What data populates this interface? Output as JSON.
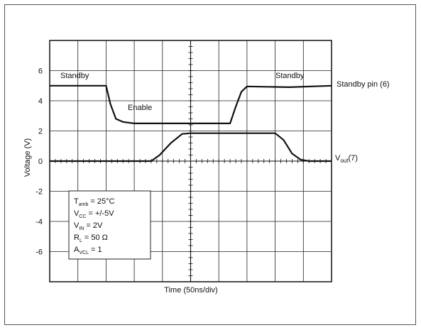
{
  "chart_data": {
    "type": "line",
    "xlabel": "Time (50ns/div)",
    "ylabel": "Voltage (V)",
    "x_divisions": 10,
    "ylim": [
      -8,
      8
    ],
    "y_ticks": [
      6,
      4,
      2,
      0,
      -2,
      -4,
      -6
    ],
    "y_tick_labels": [
      "6",
      "4",
      "2",
      "0",
      "-2",
      "-4",
      "-6"
    ],
    "grid": true,
    "series": [
      {
        "name": "Standby pin (6)",
        "x": [
          0,
          2.0,
          2.15,
          2.35,
          2.6,
          3.0,
          5.0,
          6.4,
          6.6,
          6.8,
          7.0,
          8.5,
          10
        ],
        "values": [
          5.0,
          5.0,
          3.8,
          2.8,
          2.6,
          2.5,
          2.5,
          2.5,
          3.6,
          4.6,
          4.95,
          4.9,
          5.0
        ]
      },
      {
        "name": "V_out(7)",
        "x": [
          0,
          3.6,
          3.9,
          4.3,
          4.7,
          5.0,
          6.5,
          8.0,
          8.3,
          8.6,
          8.9,
          9.2,
          10
        ],
        "values": [
          0.0,
          0.0,
          0.4,
          1.2,
          1.8,
          1.85,
          1.85,
          1.85,
          1.4,
          0.5,
          0.1,
          0.0,
          0.0
        ]
      }
    ],
    "annotations": {
      "standby_left": "Standby",
      "standby_right": "Standby",
      "enable": "Enable",
      "standby_pin": "Standby pin (6)",
      "vout_main": "V",
      "vout_sub": "out",
      "vout_pin": "(7)"
    },
    "conditions": [
      {
        "main": "T",
        "sub": "amb",
        "rest": " = 25°C"
      },
      {
        "main": "V",
        "sub": "CC",
        "rest": " = +/-5V"
      },
      {
        "main": "V",
        "sub": "IN",
        "rest": " = 2V"
      },
      {
        "main": "R",
        "sub": "L",
        "rest": " = 50 Ω"
      },
      {
        "main": "A",
        "sub": "VCL",
        "rest": " = 1"
      }
    ]
  }
}
